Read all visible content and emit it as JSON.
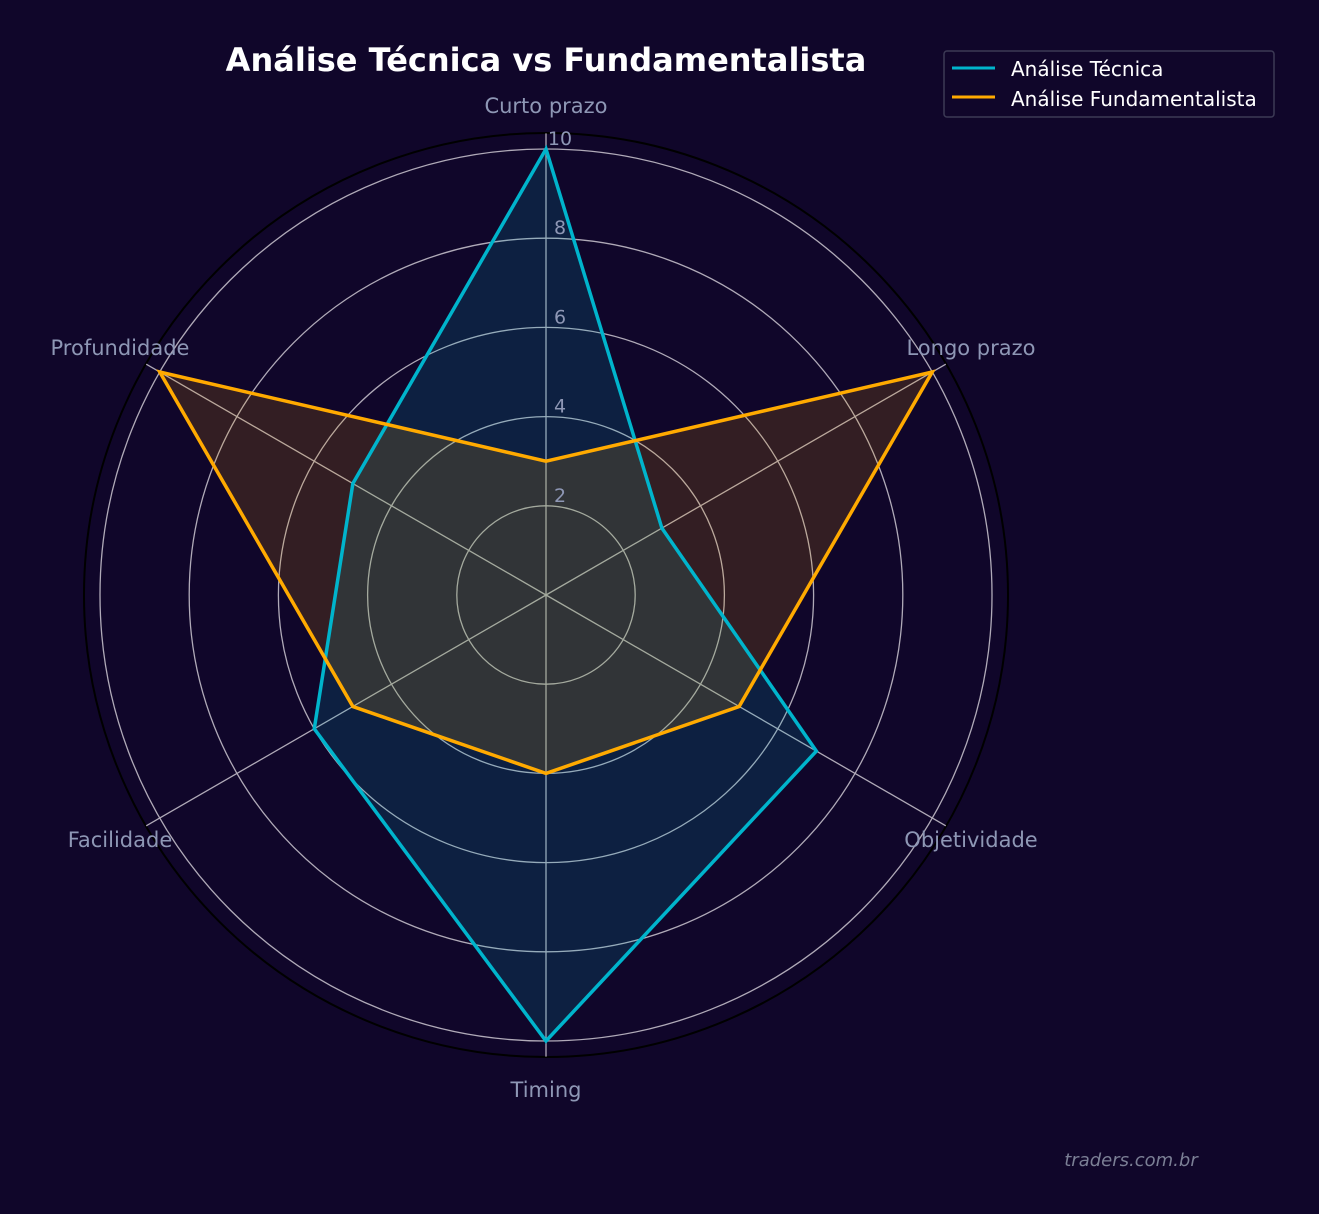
{
  "chart_data": {
    "type": "radar",
    "title": "Análise Técnica vs Fundamentalista",
    "categories": [
      "Curto prazo",
      "Longo prazo",
      "Objetividade",
      "Timing",
      "Facilidade",
      "Profundidade"
    ],
    "rmax": 10,
    "rticks": [
      "2",
      "4",
      "6",
      "8",
      "10"
    ],
    "rtick_values": [
      2,
      4,
      6,
      8,
      10
    ],
    "series": [
      {
        "name": "Análise Técnica",
        "values": [
          10,
          3,
          7,
          10,
          6,
          5
        ],
        "color": "#00b4cc",
        "fill": "#0f2a52"
      },
      {
        "name": "Análise Fundamentalista",
        "values": [
          3,
          10,
          5,
          4,
          5,
          10
        ],
        "color": "#ffaa00",
        "fill": "#4a2418"
      }
    ],
    "legend_position": "top-right",
    "watermark": "traders.com.br",
    "colors": {
      "background": "#10062a",
      "grid": "#b0aab8",
      "label": "#8e97b5",
      "overlap_fill": "#343638"
    }
  }
}
